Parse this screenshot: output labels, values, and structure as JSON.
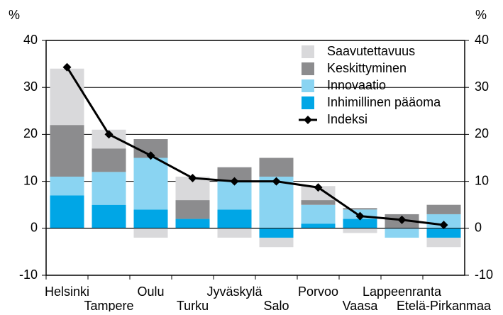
{
  "chart_data": {
    "type": "bar",
    "stacked": true,
    "unit": "%",
    "categories": [
      "Helsinki",
      "Tampere",
      "Oulu",
      "Turku",
      "Jyväskylä",
      "Salo",
      "Porvoo",
      "Vaasa",
      "Lappeenranta",
      "Etelä-Pirkanmaa"
    ],
    "series": [
      {
        "name": "Inhimillinen pääoma",
        "color": "#00a6e6",
        "values": [
          7,
          5,
          4,
          2,
          4,
          -2,
          1,
          2,
          0,
          -2
        ]
      },
      {
        "name": "Innovaatio",
        "color": "#8ad4f2",
        "values": [
          4,
          7,
          11,
          0,
          6,
          11,
          4,
          2,
          -2,
          3
        ]
      },
      {
        "name": "Keskittyminen",
        "color": "#8c8c8e",
        "values": [
          11,
          5,
          4,
          4,
          3,
          4,
          1,
          0.3,
          3,
          2
        ]
      },
      {
        "name": "Saavutettavuus",
        "color": "#d9d9db",
        "values": [
          12,
          4,
          -2,
          5,
          -2,
          -2,
          3,
          -1,
          0,
          -2
        ]
      },
      {
        "name": "Indeksi",
        "type": "line",
        "color": "#000000",
        "values": [
          34.3,
          20,
          15.5,
          10.7,
          10,
          10,
          8.7,
          2.6,
          1.8,
          0.7
        ]
      }
    ],
    "ylim": [
      -10,
      40
    ],
    "yticks": [
      -10,
      0,
      10,
      20,
      30,
      40
    ],
    "grid": true,
    "legend": "top-right"
  }
}
